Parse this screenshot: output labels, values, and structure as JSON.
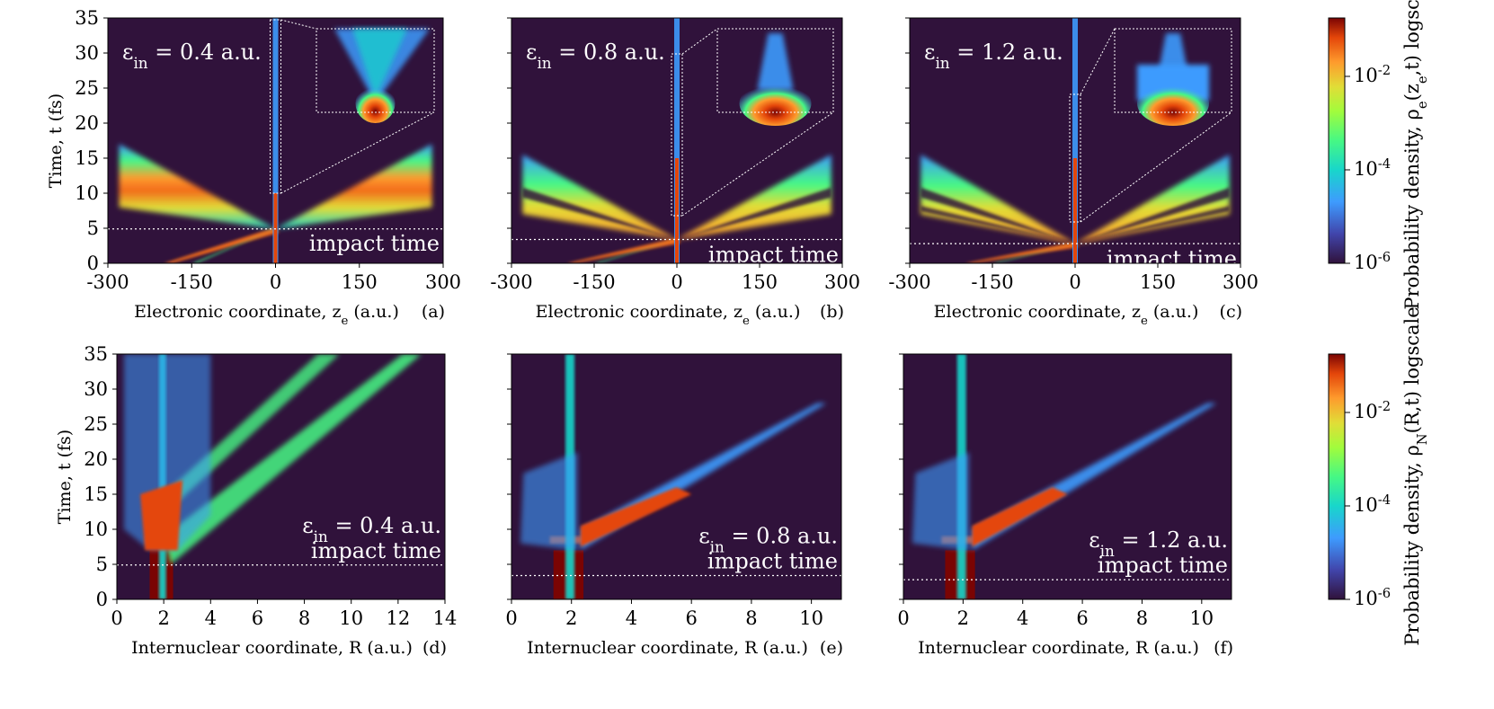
{
  "chart_data": [
    {
      "panel": "(a)",
      "type": "heatmap",
      "xlabel": "Electronic coordinate, z_e (a.u.)",
      "ylabel": "Time, t (fs)",
      "xlim": [
        -300,
        300
      ],
      "ylim": [
        0,
        35
      ],
      "xticks": [
        "-300",
        "-150",
        "0",
        "150",
        "300"
      ],
      "yticks": [
        "0",
        "5",
        "10",
        "15",
        "20",
        "25",
        "30",
        "35"
      ],
      "epsilon_label": "ε_in = 0.4 a.u.",
      "impact_label": "impact time",
      "impact_time": 4.9,
      "inset": true
    },
    {
      "panel": "(b)",
      "type": "heatmap",
      "xlabel": "Electronic coordinate, z_e (a.u.)",
      "ylabel": "",
      "xlim": [
        -300,
        300
      ],
      "ylim": [
        0,
        35
      ],
      "xticks": [
        "-300",
        "-150",
        "0",
        "150",
        "300"
      ],
      "yticks": [],
      "epsilon_label": "ε_in = 0.8 a.u.",
      "impact_label": "impact time",
      "impact_time": 3.4,
      "inset": true
    },
    {
      "panel": "(c)",
      "type": "heatmap",
      "xlabel": "Electronic coordinate, z_e (a.u.)",
      "ylabel": "",
      "xlim": [
        -300,
        300
      ],
      "ylim": [
        0,
        35
      ],
      "xticks": [
        "-300",
        "-150",
        "0",
        "150",
        "300"
      ],
      "yticks": [],
      "epsilon_label": "ε_in = 1.2 a.u.",
      "impact_label": "impact time",
      "impact_time": 2.8,
      "inset": true
    },
    {
      "panel": "(d)",
      "type": "heatmap",
      "xlabel": "Internuclear coordinate, R (a.u.)",
      "ylabel": "Time, t (fs)",
      "xlim": [
        0,
        14
      ],
      "ylim": [
        0,
        35
      ],
      "xticks": [
        "0",
        "2",
        "4",
        "6",
        "8",
        "10",
        "12",
        "14"
      ],
      "yticks": [
        "0",
        "5",
        "10",
        "15",
        "20",
        "25",
        "30",
        "35"
      ],
      "epsilon_label": "ε_in = 0.4 a.u.",
      "impact_label": "impact time",
      "impact_time": 4.9
    },
    {
      "panel": "(e)",
      "type": "heatmap",
      "xlabel": "Internuclear coordinate, R (a.u.)",
      "ylabel": "",
      "xlim": [
        0,
        11
      ],
      "ylim": [
        0,
        35
      ],
      "xticks": [
        "0",
        "2",
        "4",
        "6",
        "8",
        "10"
      ],
      "yticks": [],
      "epsilon_label": "ε_in = 0.8 a.u.",
      "impact_label": "impact time",
      "impact_time": 3.4
    },
    {
      "panel": "(f)",
      "type": "heatmap",
      "xlabel": "Internuclear coordinate, R (a.u.)",
      "ylabel": "",
      "xlim": [
        0,
        11
      ],
      "ylim": [
        0,
        35
      ],
      "xticks": [
        "0",
        "2",
        "4",
        "6",
        "8",
        "10"
      ],
      "yticks": [],
      "epsilon_label": "ε_in = 1.2 a.u.",
      "impact_label": "impact time",
      "impact_time": 2.8
    }
  ],
  "colorbars": [
    {
      "label": "Probability density, ρ_e(z_e,t) logscale",
      "ticks": [
        "10^-2",
        "10^-4",
        "10^-6"
      ]
    },
    {
      "label": "Probability density, ρ_N(R,t) logscale",
      "ticks": [
        "10^-2",
        "10^-4",
        "10^-6"
      ]
    }
  ]
}
